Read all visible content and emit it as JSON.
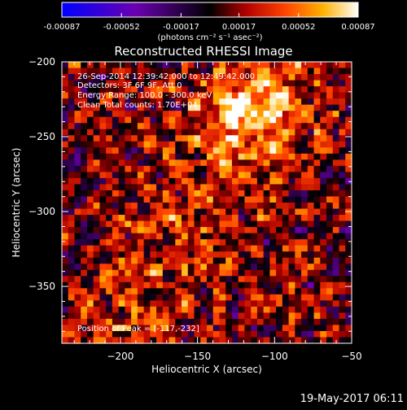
{
  "colorbar": {
    "tick_labels": [
      "-0.00087",
      "-0.00052",
      "-0.00017",
      "0.00017",
      "0.00052",
      "0.00087"
    ],
    "units": "(photons cm⁻² s⁻¹ asec⁻²)"
  },
  "title": "Reconstructed RHESSI Image",
  "annotations": {
    "time_range": "26-Sep-2014 12:39:42.000 to 12:49:42.000",
    "detectors": "Detectors: 3F 6F 9F, Att 0",
    "energy": "Energy Range: 100.0 - 300.0 keV",
    "method": "Clean    Total counts: 1.70E+04",
    "peak": "Position of Peak = [-117,-232]"
  },
  "footer_date": "19-May-2017 06:11",
  "colors": {
    "background": "#000000",
    "axis": "#ffffff"
  },
  "chart_data": {
    "type": "heatmap",
    "title": "Reconstructed RHESSI Image",
    "xlabel": "Heliocentric X (arcsec)",
    "ylabel": "Heliocentric Y (arcsec)",
    "xlim": [
      -238,
      -50
    ],
    "ylim": [
      -388,
      -200
    ],
    "x_ticks": [
      -200,
      -150,
      -100,
      -50
    ],
    "y_ticks": [
      -200,
      -250,
      -300,
      -350
    ],
    "x_tick_labels": [
      "−200",
      "−150",
      "−100",
      "−50"
    ],
    "y_tick_labels": [
      "−200",
      "−250",
      "−300",
      "−350"
    ],
    "value_range": [
      -0.00087,
      0.00087
    ],
    "colormap": [
      "#0000ff",
      "#6a00b0",
      "#000000",
      "#b00000",
      "#ff4000",
      "#ffb000",
      "#ffffff"
    ],
    "peak_position": [
      -117,
      -232
    ]
  }
}
